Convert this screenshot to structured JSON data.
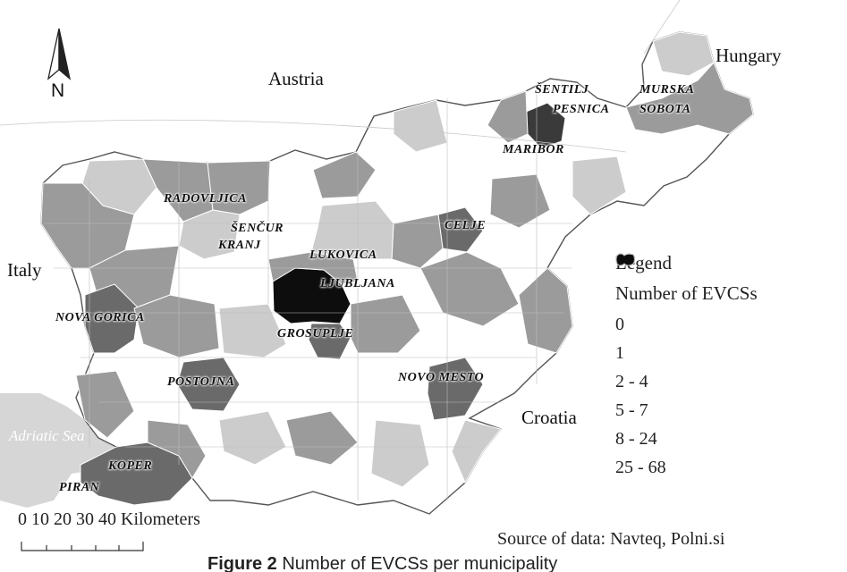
{
  "north_arrow": {
    "label": "N",
    "icon": "north-arrow-icon"
  },
  "countries": {
    "austria": "Austria",
    "hungary": "Hungary",
    "italy": "Italy",
    "croatia": "Croatia"
  },
  "sea": "Adriatic Sea",
  "cities": {
    "sentilj": "ŠENTILJ",
    "murska": "MURSKA",
    "pesnica": "PESNICA",
    "sobota": "SOBOTA",
    "maribor": "MARIBOR",
    "radovljica": "RADOVLJICA",
    "sencur": "ŠENČUR",
    "celje": "CELJE",
    "kranj": "KRANJ",
    "lukovica": "LUKOVICA",
    "ljubljana": "LJUBLJANA",
    "nova_gorica": "NOVA GORICA",
    "grosuplje": "GROSUPLJE",
    "postojna": "POSTOJNA",
    "novo_mesto": "NOVO MESTO",
    "koper": "KOPER",
    "piran": "PIRAN"
  },
  "legend": {
    "title": "Legend",
    "subtitle": "Number of EVCSs",
    "classes": [
      {
        "label": "0",
        "color": "#ffffff"
      },
      {
        "label": "1",
        "color": "#cccccc"
      },
      {
        "label": "2 - 4",
        "color": "#9b9b9b"
      },
      {
        "label": "5 - 7",
        "color": "#6a6a6a"
      },
      {
        "label": "8 - 24",
        "color": "#3a3a3a"
      },
      {
        "label": "25 - 68",
        "color": "#0d0d0d"
      }
    ]
  },
  "scale_bar": {
    "label": "0 10 20 30 40 Kilometers"
  },
  "source": "Source of data: Navteq, Polni.si",
  "caption": {
    "prefix": "Figure 2",
    "text": "Number of EVCSs per municipality"
  }
}
